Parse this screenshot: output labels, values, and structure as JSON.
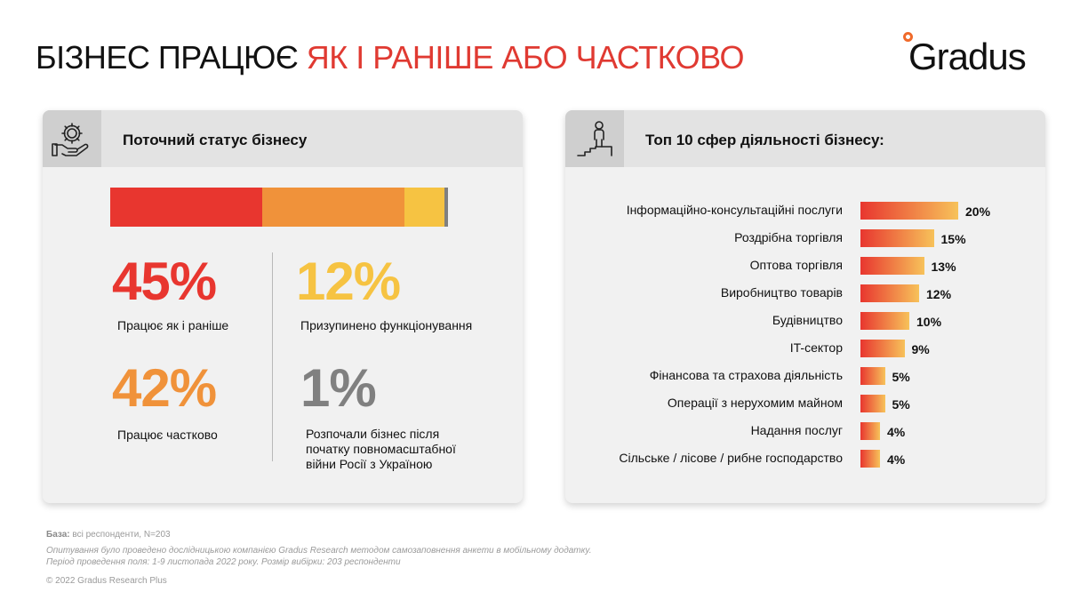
{
  "title": {
    "part1": "БІЗНЕС ПРАЦЮЄ ",
    "part2": "ЯК І РАНІШЕ АБО ЧАСТКОВО"
  },
  "logo": {
    "text": "Gradus"
  },
  "left_panel": {
    "title": "Поточний статус бізнесу",
    "icon": "hand-gear-icon",
    "stats": [
      {
        "value": "45%",
        "label": "Працює як і раніше",
        "color": "#e8362f"
      },
      {
        "value": "42%",
        "label": "Працює частково",
        "color": "#f0923a"
      },
      {
        "value": "12%",
        "label": "Призупинено функціонування",
        "color": "#f6c342"
      },
      {
        "value": "1%",
        "label": "Розпочали бізнес після початку повномасштабної війни Росії з Україною",
        "color": "#808080"
      }
    ]
  },
  "right_panel": {
    "title": "Топ 10 сфер діяльності бізнесу:",
    "icon": "person-podium-icon"
  },
  "chart_data": [
    {
      "type": "bar",
      "orientation": "horizontal-stacked",
      "categories": [
        "Працює як і раніше",
        "Працює частково",
        "Призупинено функціонування",
        "Розпочали бізнес після початку повномасштабної війни Росії з Україною"
      ],
      "values": [
        45,
        42,
        12,
        1
      ],
      "colors": [
        "#e8362f",
        "#f0923a",
        "#f6c342",
        "#808080"
      ]
    },
    {
      "type": "bar",
      "orientation": "horizontal",
      "categories": [
        "Інформаційно-консультаційні послуги",
        "Роздрібна торгівля",
        "Оптова торгівля",
        "Виробництво товарів",
        "Будівництво",
        "IT-сектор",
        "Фінансова та страхова діяльність",
        "Операції з нерухомим майном",
        "Надання послуг",
        "Сільське / лісове / рибне господарство"
      ],
      "values": [
        20,
        15,
        13,
        12,
        10,
        9,
        5,
        5,
        4,
        4
      ],
      "value_labels": [
        "20%",
        "15%",
        "13%",
        "12%",
        "10%",
        "9%",
        "5%",
        "5%",
        "4%",
        "4%"
      ],
      "colors": [
        "#e8362f",
        "#f7c25a"
      ]
    }
  ],
  "footer": {
    "base_label": "База:",
    "base_text": " всі респонденти, N=203",
    "note1": "Опитування було проведено дослідницькою компанією Gradus Research методом самозаповнення анкети в мобільному додатку.",
    "note2": "Період проведення поля: 1-9 листопада 2022 року. Розмір вибірки: 203 респонденти",
    "copyright": "© 2022 Gradus Research Plus"
  }
}
